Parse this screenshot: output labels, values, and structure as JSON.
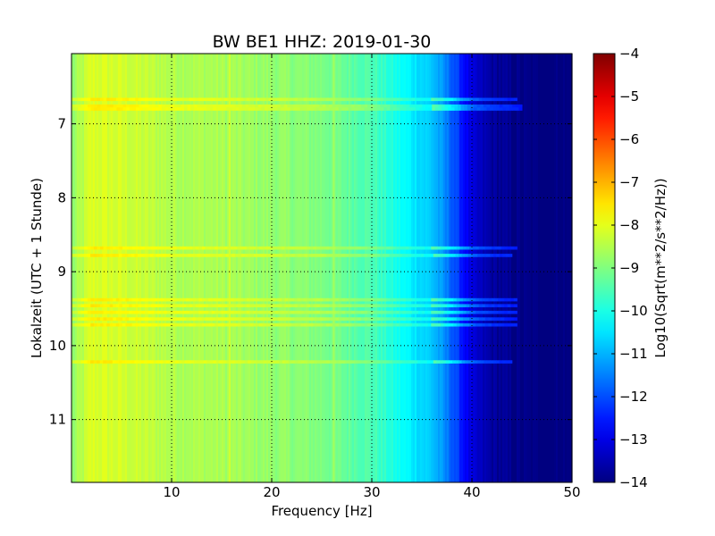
{
  "chart_data": {
    "type": "heatmap",
    "title": "BW BE1 HHZ: 2019-01-30",
    "xlabel": "Frequency [Hz]",
    "ylabel": "Lokalzeit (UTC + 1 Stunde)",
    "xlim": [
      0,
      50
    ],
    "ylim": [
      11.85,
      6.05
    ],
    "y_inverted": true,
    "xticks": [
      10,
      20,
      30,
      40,
      50
    ],
    "yticks": [
      7,
      8,
      9,
      10,
      11
    ],
    "grid": true,
    "colormap": "jet",
    "colorbar": {
      "label": "Log10(Sqrt(m**2/s**2/Hz))",
      "range": [
        -14,
        -4
      ],
      "ticks": [
        -4,
        -5,
        -6,
        -7,
        -8,
        -9,
        -10,
        -11,
        -12,
        -13,
        -14
      ]
    },
    "spectrum_profile": {
      "frequency_hz": [
        0,
        2,
        5,
        10,
        15,
        20,
        25,
        30,
        33,
        36,
        38,
        40,
        42,
        44,
        46,
        50
      ],
      "log10_amplitude": [
        -8.9,
        -8.1,
        -8.2,
        -8.5,
        -8.6,
        -8.8,
        -9.0,
        -9.5,
        -10.2,
        -10.8,
        -11.8,
        -13.2,
        -13.7,
        -13.9,
        -14.0,
        -14.0
      ]
    },
    "horizontal_bands": [
      {
        "time_h": 6.67,
        "extends_to_hz": 44.5
      },
      {
        "time_h": 6.76,
        "extends_to_hz": 45.0
      },
      {
        "time_h": 6.8,
        "extends_to_hz": 45.0
      },
      {
        "time_h": 8.68,
        "extends_to_hz": 44.5
      },
      {
        "time_h": 8.78,
        "extends_to_hz": 44.0
      },
      {
        "time_h": 9.38,
        "extends_to_hz": 44.5
      },
      {
        "time_h": 9.46,
        "extends_to_hz": 44.5
      },
      {
        "time_h": 9.55,
        "extends_to_hz": 44.5
      },
      {
        "time_h": 9.64,
        "extends_to_hz": 44.5
      },
      {
        "time_h": 9.72,
        "extends_to_hz": 44.5
      },
      {
        "time_h": 10.22,
        "extends_to_hz": 44.0
      }
    ],
    "vertical_lines": [
      {
        "frequency_hz": 15.8
      },
      {
        "frequency_hz": 26.2
      }
    ]
  }
}
